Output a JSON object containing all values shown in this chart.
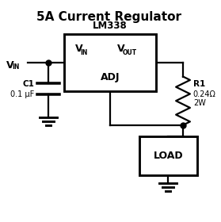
{
  "title": "5A Current Regulator",
  "title_fontsize": 11,
  "ic_label": "LM338",
  "ic_vin": "V",
  "ic_vin_sub": "IN",
  "ic_vout": "V",
  "ic_vout_sub": "OUT",
  "ic_adj": "ADJ",
  "vin_label_v": "V",
  "vin_label_sub": "IN",
  "c1_label": "C1",
  "c1_val": "0.1 μF",
  "r1_label": "R1",
  "r1_val": "0.24Ω",
  "r1_val2": "2W",
  "load_label": "LOAD",
  "background": "#ffffff",
  "line_color": "#000000",
  "line_width": 1.6
}
